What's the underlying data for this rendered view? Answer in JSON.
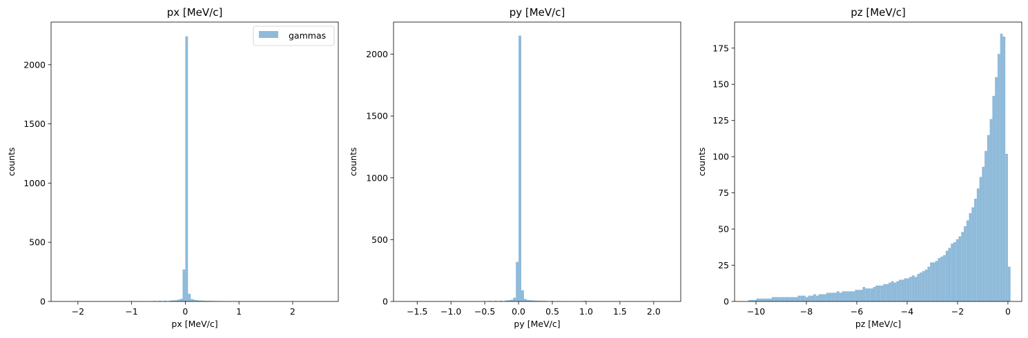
{
  "chart_data": [
    {
      "type": "bar",
      "title": "px [MeV/c]",
      "xlabel": "px [MeV/c]",
      "ylabel": "counts",
      "xlim": [
        -2.5,
        2.85
      ],
      "ylim": [
        0,
        2360
      ],
      "xticks": [
        -2,
        -1,
        0,
        1,
        2
      ],
      "yticks": [
        0,
        500,
        1000,
        1500,
        2000
      ],
      "legend": {
        "labels": [
          "gammas"
        ],
        "placement": "top-right"
      },
      "grid": false,
      "color": "#8fbad9",
      "bin_width": 0.05,
      "bins": [
        [
          -2.05,
          2
        ],
        [
          -1.75,
          1
        ],
        [
          -1.05,
          2
        ],
        [
          -0.8,
          3
        ],
        [
          -0.6,
          4
        ],
        [
          -0.5,
          5
        ],
        [
          -0.4,
          6
        ],
        [
          -0.3,
          7
        ],
        [
          -0.25,
          9
        ],
        [
          -0.2,
          10
        ],
        [
          -0.15,
          15
        ],
        [
          -0.1,
          22
        ],
        [
          -0.05,
          270
        ],
        [
          0.0,
          2240
        ],
        [
          0.05,
          65
        ],
        [
          0.1,
          20
        ],
        [
          0.15,
          14
        ],
        [
          0.2,
          10
        ],
        [
          0.25,
          8
        ],
        [
          0.3,
          7
        ],
        [
          0.35,
          6
        ],
        [
          0.4,
          5
        ],
        [
          0.45,
          5
        ],
        [
          0.5,
          4
        ],
        [
          0.55,
          4
        ],
        [
          0.6,
          3
        ],
        [
          0.65,
          3
        ],
        [
          0.7,
          3
        ],
        [
          1.0,
          1
        ],
        [
          2.3,
          1
        ]
      ]
    },
    {
      "type": "bar",
      "title": "py [MeV/c]",
      "xlabel": "py [MeV/c]",
      "ylabel": "counts",
      "xlim": [
        -1.85,
        2.4
      ],
      "ylim": [
        0,
        2260
      ],
      "xticks": [
        -1.5,
        -1.0,
        -0.5,
        0.0,
        0.5,
        1.0,
        1.5,
        2.0
      ],
      "yticks": [
        0,
        500,
        1000,
        1500,
        2000
      ],
      "grid": false,
      "color": "#8fbad9",
      "bin_width": 0.04,
      "bins": [
        [
          -1.68,
          1
        ],
        [
          -1.0,
          3
        ],
        [
          -0.84,
          3
        ],
        [
          -0.72,
          2
        ],
        [
          -0.6,
          3
        ],
        [
          -0.44,
          4
        ],
        [
          -0.36,
          5
        ],
        [
          -0.28,
          6
        ],
        [
          -0.2,
          8
        ],
        [
          -0.16,
          10
        ],
        [
          -0.12,
          14
        ],
        [
          -0.08,
          30
        ],
        [
          -0.04,
          320
        ],
        [
          0.0,
          2150
        ],
        [
          0.04,
          90
        ],
        [
          0.08,
          20
        ],
        [
          0.12,
          12
        ],
        [
          0.16,
          10
        ],
        [
          0.2,
          8
        ],
        [
          0.24,
          7
        ],
        [
          0.28,
          6
        ],
        [
          0.32,
          5
        ],
        [
          0.36,
          5
        ],
        [
          0.4,
          4
        ],
        [
          0.48,
          4
        ],
        [
          0.56,
          3
        ],
        [
          0.64,
          3
        ],
        [
          0.76,
          2
        ],
        [
          0.96,
          6
        ],
        [
          2.2,
          1
        ]
      ]
    },
    {
      "type": "bar",
      "title": "pz [MeV/c]",
      "xlabel": "pz [MeV/c]",
      "ylabel": "counts",
      "xlim": [
        -10.85,
        0.55
      ],
      "ylim": [
        0,
        193
      ],
      "xticks": [
        -10,
        -8,
        -6,
        -4,
        -2,
        0
      ],
      "yticks": [
        0,
        25,
        50,
        75,
        100,
        125,
        150,
        175
      ],
      "grid": false,
      "color": "#8fbad9",
      "bin_start": -10.3,
      "bin_width": 0.103,
      "values": [
        1,
        1,
        1,
        2,
        2,
        2,
        2,
        2,
        2,
        3,
        3,
        3,
        3,
        3,
        3,
        3,
        3,
        3,
        3,
        4,
        4,
        4,
        3,
        4,
        4,
        5,
        4,
        5,
        5,
        5,
        6,
        6,
        6,
        6,
        7,
        6,
        7,
        7,
        7,
        7,
        7,
        8,
        8,
        8,
        10,
        9,
        9,
        9,
        10,
        11,
        11,
        11,
        12,
        12,
        13,
        14,
        13,
        14,
        15,
        15,
        16,
        16,
        17,
        18,
        17,
        19,
        20,
        21,
        22,
        24,
        27,
        27,
        28,
        30,
        31,
        32,
        35,
        37,
        40,
        41,
        43,
        45,
        48,
        52,
        56,
        61,
        65,
        71,
        78,
        86,
        93,
        104,
        115,
        126,
        142,
        155,
        171,
        185,
        183,
        102,
        24
      ]
    }
  ]
}
